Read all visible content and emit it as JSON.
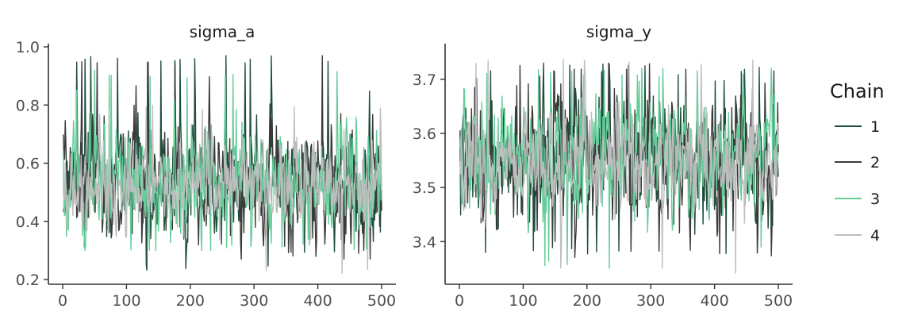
{
  "chart_data": [
    {
      "type": "line",
      "title": "sigma_a",
      "xlabel": "",
      "ylabel": "",
      "xlim": [
        0,
        500
      ],
      "ylim": [
        0.2,
        1.0
      ],
      "x_ticks": [
        0,
        100,
        200,
        300,
        400,
        500
      ],
      "y_ticks": [
        0.2,
        0.4,
        0.6,
        0.8,
        1.0
      ],
      "y_tick_labels": [
        "0.2",
        "0.4",
        "0.6",
        "0.8",
        "1.0"
      ],
      "n_iterations": 500,
      "grid": false,
      "series": [
        {
          "name": "1",
          "color": "#1f4e3d",
          "mean": 0.53,
          "sd": 0.085,
          "min": 0.23,
          "max": 0.97,
          "seed": 11
        },
        {
          "name": "2",
          "color": "#3a3a3a",
          "mean": 0.53,
          "sd": 0.085,
          "min": 0.27,
          "max": 0.97,
          "seed": 23
        },
        {
          "name": "3",
          "color": "#66cc99",
          "mean": 0.54,
          "sd": 0.09,
          "min": 0.3,
          "max": 0.92,
          "seed": 37
        },
        {
          "name": "4",
          "color": "#bebebe",
          "mean": 0.53,
          "sd": 0.065,
          "min": 0.22,
          "max": 0.8,
          "seed": 41
        }
      ]
    },
    {
      "type": "line",
      "title": "sigma_y",
      "xlabel": "",
      "ylabel": "",
      "xlim": [
        0,
        500
      ],
      "ylim": [
        3.33,
        3.76
      ],
      "x_ticks": [
        0,
        100,
        200,
        300,
        400,
        500
      ],
      "y_ticks": [
        3.4,
        3.5,
        3.6,
        3.7
      ],
      "y_tick_labels": [
        "3.4",
        "3.5",
        "3.6",
        "3.7"
      ],
      "n_iterations": 500,
      "grid": false,
      "series": [
        {
          "name": "1",
          "color": "#1f4e3d",
          "mean": 3.55,
          "sd": 0.055,
          "min": 3.37,
          "max": 3.73,
          "seed": 53
        },
        {
          "name": "2",
          "color": "#3a3a3a",
          "mean": 3.55,
          "sd": 0.055,
          "min": 3.37,
          "max": 3.73,
          "seed": 67
        },
        {
          "name": "3",
          "color": "#66cc99",
          "mean": 3.55,
          "sd": 0.055,
          "min": 3.35,
          "max": 3.72,
          "seed": 71
        },
        {
          "name": "4",
          "color": "#bebebe",
          "mean": 3.55,
          "sd": 0.04,
          "min": 3.34,
          "max": 3.74,
          "seed": 83
        }
      ]
    }
  ],
  "legend": {
    "title": "Chain",
    "placement": "right",
    "items": [
      {
        "label": "1",
        "color": "#1f4e3d"
      },
      {
        "label": "2",
        "color": "#3a3a3a"
      },
      {
        "label": "3",
        "color": "#66cc99"
      },
      {
        "label": "4",
        "color": "#bebebe"
      }
    ]
  }
}
